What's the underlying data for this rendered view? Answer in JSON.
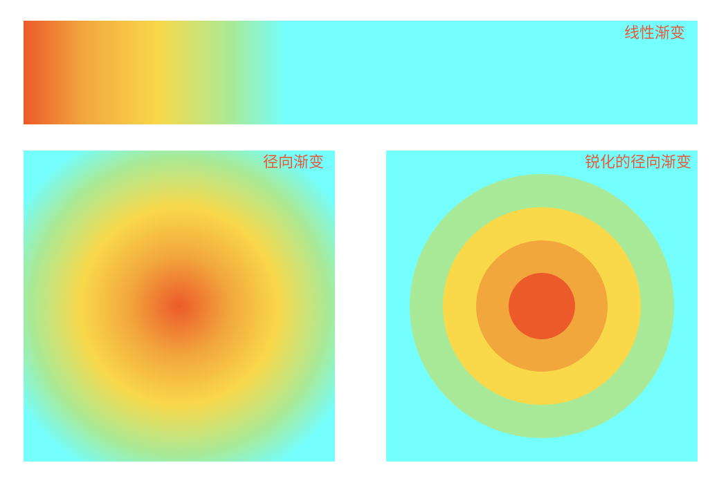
{
  "colors": {
    "red": "#ec5a2a",
    "orange": "#f2a73d",
    "yellow": "#f9d84a",
    "green": "#a8ea98",
    "cyan": "#74fefe",
    "label": "#e25b3a"
  },
  "panels": {
    "linear": {
      "label": "线性渐变"
    },
    "radial": {
      "label": "径向渐变"
    },
    "sharp_radial": {
      "label": "锐化的径向渐变"
    }
  }
}
